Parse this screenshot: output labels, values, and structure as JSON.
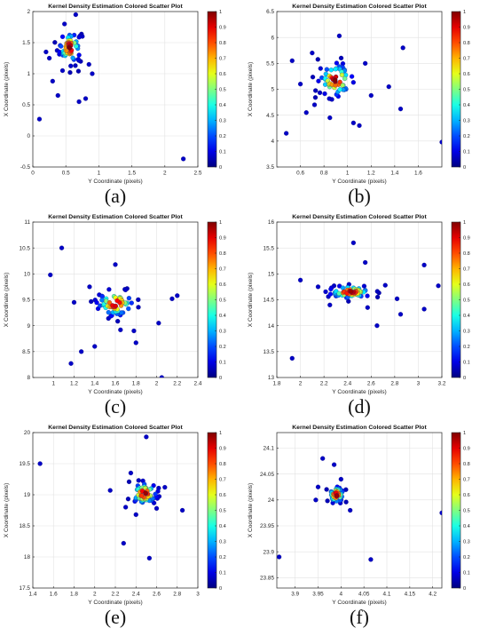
{
  "colors": {
    "colormap": "jet",
    "grid": "#e2e2e2",
    "axis": "#262626",
    "point_edge": "#1a1a6e"
  },
  "chart_data": [
    {
      "type": "scatter",
      "panel_label": "(a)",
      "title": "Kernel Density Estimation Colored Scatter Plot",
      "xlabel": "Y Coordinate (pixels)",
      "ylabel": "X Coordinate (pixels)",
      "xlim": [
        0,
        2.5
      ],
      "ylim": [
        -0.5,
        2
      ],
      "xticks": [
        0,
        0.5,
        1,
        1.5,
        2,
        2.5
      ],
      "yticks": [
        -0.5,
        0,
        0.5,
        1,
        1.5,
        2
      ],
      "xtick_labels": [
        "0",
        "0.5",
        "1",
        "1.5",
        "2",
        "2.5"
      ],
      "ytick_labels": [
        "-0.5",
        "0",
        "0.5",
        "1",
        "1.5",
        "2"
      ],
      "colorbar": {
        "range": [
          0,
          1
        ],
        "ticks": [
          "0",
          "0.1",
          "0.2",
          "0.3",
          "0.4",
          "0.5",
          "0.6",
          "0.7",
          "0.8",
          "0.9",
          "1"
        ]
      },
      "grid": true,
      "cluster": {
        "center": [
          0.56,
          1.42
        ],
        "spread": [
          0.09,
          0.14
        ],
        "count": 60
      },
      "outliers": [
        [
          0.1,
          0.27
        ],
        [
          2.28,
          -0.37
        ],
        [
          0.7,
          0.55
        ],
        [
          0.8,
          0.6
        ],
        [
          0.38,
          0.65
        ],
        [
          0.3,
          0.88
        ],
        [
          0.9,
          1.0
        ],
        [
          0.48,
          1.8
        ],
        [
          0.65,
          1.95
        ],
        [
          0.2,
          1.35
        ],
        [
          0.25,
          1.25
        ],
        [
          0.75,
          1.6
        ],
        [
          0.45,
          1.05
        ],
        [
          0.85,
          1.15
        ]
      ]
    },
    {
      "type": "scatter",
      "panel_label": "(b)",
      "title": "Kernel Density Estimation Colored Scatter Plot",
      "xlabel": "Y Coordinate (pixels)",
      "ylabel": "X Coordinate (pixels)",
      "xlim": [
        0.4,
        1.8
      ],
      "ylim": [
        3.5,
        6.5
      ],
      "xticks": [
        0.6,
        0.8,
        1,
        1.2,
        1.4,
        1.6
      ],
      "yticks": [
        3.5,
        4,
        4.5,
        5,
        5.5,
        6,
        6.5
      ],
      "xtick_labels": [
        "0.6",
        "0.8",
        "1",
        "1.2",
        "1.4",
        "1.6"
      ],
      "ytick_labels": [
        "3.5",
        "4",
        "4.5",
        "5",
        "5.5",
        "6",
        "6.5"
      ],
      "colorbar": {
        "range": [
          0,
          1
        ],
        "ticks": [
          "0",
          "0.1",
          "0.2",
          "0.3",
          "0.4",
          "0.5",
          "0.6",
          "0.7",
          "0.8",
          "0.9",
          "1"
        ]
      },
      "grid": true,
      "cluster": {
        "center": [
          0.9,
          5.18
        ],
        "spread": [
          0.08,
          0.18
        ],
        "count": 60
      },
      "outliers": [
        [
          0.48,
          4.15
        ],
        [
          1.8,
          3.98
        ],
        [
          1.47,
          5.8
        ],
        [
          0.93,
          6.03
        ],
        [
          1.45,
          4.62
        ],
        [
          1.35,
          5.05
        ],
        [
          0.53,
          5.55
        ],
        [
          0.6,
          5.1
        ],
        [
          0.65,
          4.55
        ],
        [
          1.05,
          4.35
        ],
        [
          1.1,
          4.3
        ],
        [
          1.2,
          4.88
        ],
        [
          0.7,
          5.7
        ],
        [
          1.15,
          5.5
        ],
        [
          0.72,
          4.7
        ],
        [
          0.85,
          4.45
        ]
      ]
    },
    {
      "type": "scatter",
      "panel_label": "(c)",
      "title": "Kernel Density Estimation Colored Scatter Plot",
      "xlabel": "Y Coordinate (pixels)",
      "ylabel": "X Coordinate (pixels)",
      "xlim": [
        0.8,
        2.4
      ],
      "ylim": [
        8,
        11
      ],
      "xticks": [
        1,
        1.2,
        1.4,
        1.6,
        1.8,
        2,
        2.2,
        2.4
      ],
      "yticks": [
        8,
        8.5,
        9,
        9.5,
        10,
        10.5,
        11
      ],
      "xtick_labels": [
        "1",
        "1.2",
        "1.4",
        "1.6",
        "1.8",
        "2",
        "2.2",
        "2.4"
      ],
      "ytick_labels": [
        "8",
        "8.5",
        "9",
        "9.5",
        "10",
        "10.5",
        "11"
      ],
      "colorbar": {
        "range": [
          0,
          1
        ],
        "ticks": [
          "0",
          "0.1",
          "0.2",
          "0.3",
          "0.4",
          "0.5",
          "0.6",
          "0.7",
          "0.8",
          "0.9",
          "1"
        ]
      },
      "grid": true,
      "cluster": {
        "center": [
          1.6,
          9.43
        ],
        "spread": [
          0.1,
          0.14
        ],
        "count": 65
      },
      "outliers": [
        [
          0.97,
          9.98
        ],
        [
          1.08,
          10.5
        ],
        [
          1.17,
          8.27
        ],
        [
          1.27,
          8.5
        ],
        [
          1.4,
          8.6
        ],
        [
          1.6,
          10.18
        ],
        [
          2.02,
          9.05
        ],
        [
          2.05,
          8.0
        ],
        [
          2.15,
          9.52
        ],
        [
          2.2,
          9.58
        ],
        [
          1.8,
          8.67
        ],
        [
          1.78,
          8.9
        ],
        [
          1.65,
          8.92
        ],
        [
          1.35,
          9.75
        ],
        [
          1.2,
          9.45
        ]
      ]
    },
    {
      "type": "scatter",
      "panel_label": "(d)",
      "title": "Kernel Density Estimation Colored Scatter Plot",
      "xlabel": "Y Coordinate (pixels)",
      "ylabel": "X Coordinate (pixels)",
      "xlim": [
        1.8,
        3.2
      ],
      "ylim": [
        13,
        16
      ],
      "xticks": [
        1.8,
        2,
        2.2,
        2.4,
        2.6,
        2.8,
        3,
        3.2
      ],
      "yticks": [
        13,
        13.5,
        14,
        14.5,
        15,
        15.5,
        16
      ],
      "xtick_labels": [
        "1.8",
        "2",
        "2.2",
        "2.4",
        "2.6",
        "2.8",
        "3",
        "3.2"
      ],
      "ytick_labels": [
        "13",
        "13.5",
        "14",
        "14.5",
        "15",
        "15.5",
        "16"
      ],
      "colorbar": {
        "range": [
          0,
          1
        ],
        "ticks": [
          "0",
          "0.1",
          "0.2",
          "0.3",
          "0.4",
          "0.5",
          "0.6",
          "0.7",
          "0.8",
          "0.9",
          "1"
        ]
      },
      "grid": true,
      "cluster": {
        "center": [
          2.42,
          14.65
        ],
        "spread": [
          0.1,
          0.07
        ],
        "count": 65
      },
      "outliers": [
        [
          1.93,
          13.37
        ],
        [
          2.0,
          14.88
        ],
        [
          2.45,
          15.6
        ],
        [
          2.55,
          15.22
        ],
        [
          2.65,
          14.0
        ],
        [
          2.72,
          14.78
        ],
        [
          2.82,
          14.52
        ],
        [
          2.85,
          14.22
        ],
        [
          3.05,
          15.17
        ],
        [
          3.05,
          14.32
        ],
        [
          3.17,
          14.77
        ],
        [
          2.25,
          14.4
        ],
        [
          2.57,
          14.35
        ],
        [
          2.15,
          14.75
        ]
      ]
    },
    {
      "type": "scatter",
      "panel_label": "(e)",
      "title": "Kernel Density Estimation Colored Scatter Plot",
      "xlabel": "Y Coordinate (pixels)",
      "ylabel": "X Coordinate (pixels)",
      "xlim": [
        1.4,
        3
      ],
      "ylim": [
        17.5,
        20
      ],
      "xticks": [
        1.4,
        1.6,
        1.8,
        2,
        2.2,
        2.4,
        2.6,
        2.8,
        3
      ],
      "yticks": [
        17.5,
        18,
        18.5,
        19,
        19.5,
        20
      ],
      "xtick_labels": [
        "1.4",
        "1.6",
        "1.8",
        "2",
        "2.2",
        "2.4",
        "2.6",
        "2.8",
        "3"
      ],
      "ytick_labels": [
        "17.5",
        "18",
        "18.5",
        "19",
        "19.5",
        "20"
      ],
      "colorbar": {
        "range": [
          0,
          1
        ],
        "ticks": [
          "0",
          "0.1",
          "0.2",
          "0.3",
          "0.4",
          "0.5",
          "0.6",
          "0.7",
          "0.8",
          "0.9",
          "1"
        ]
      },
      "grid": true,
      "cluster": {
        "center": [
          2.48,
          19.02
        ],
        "spread": [
          0.07,
          0.1
        ],
        "count": 60
      },
      "outliers": [
        [
          1.47,
          19.5
        ],
        [
          2.15,
          19.07
        ],
        [
          2.28,
          18.22
        ],
        [
          2.5,
          19.93
        ],
        [
          2.53,
          17.98
        ],
        [
          2.85,
          18.75
        ],
        [
          2.68,
          19.12
        ],
        [
          2.4,
          18.68
        ],
        [
          2.6,
          18.78
        ],
        [
          2.35,
          19.35
        ],
        [
          2.3,
          18.8
        ]
      ]
    },
    {
      "type": "scatter",
      "panel_label": "(f)",
      "title": "Kernel Density Estimation Colored Scatter Plot",
      "xlabel": "Y Coordinate (pixels)",
      "ylabel": "X Coordinate (pixels)",
      "xlim": [
        3.86,
        4.22
      ],
      "ylim": [
        23.83,
        24.13
      ],
      "xticks": [
        3.9,
        3.95,
        4,
        4.05,
        4.1,
        4.15,
        4.2
      ],
      "yticks": [
        23.85,
        23.9,
        23.95,
        24,
        24.05,
        24.1
      ],
      "xtick_labels": [
        "3.9",
        "3.95",
        "4",
        "4.05",
        "4.1",
        "4.15",
        "4.2"
      ],
      "ytick_labels": [
        "23.85",
        "23.9",
        "23.95",
        "24",
        "24.05",
        "24.1"
      ],
      "colorbar": {
        "range": [
          0,
          1
        ],
        "ticks": [
          "0",
          "0.1",
          "0.2",
          "0.3",
          "0.4",
          "0.5",
          "0.6",
          "0.7",
          "0.8",
          "0.9",
          "1"
        ]
      },
      "grid": true,
      "cluster": {
        "center": [
          3.99,
          24.01
        ],
        "spread": [
          0.009,
          0.009
        ],
        "count": 50
      },
      "outliers": [
        [
          3.865,
          23.89
        ],
        [
          4.22,
          23.975
        ],
        [
          4.065,
          23.885
        ],
        [
          3.96,
          24.08
        ],
        [
          3.985,
          24.068
        ],
        [
          4.0,
          24.04
        ],
        [
          3.95,
          24.025
        ],
        [
          4.02,
          23.98
        ],
        [
          3.945,
          24.0
        ]
      ]
    }
  ]
}
